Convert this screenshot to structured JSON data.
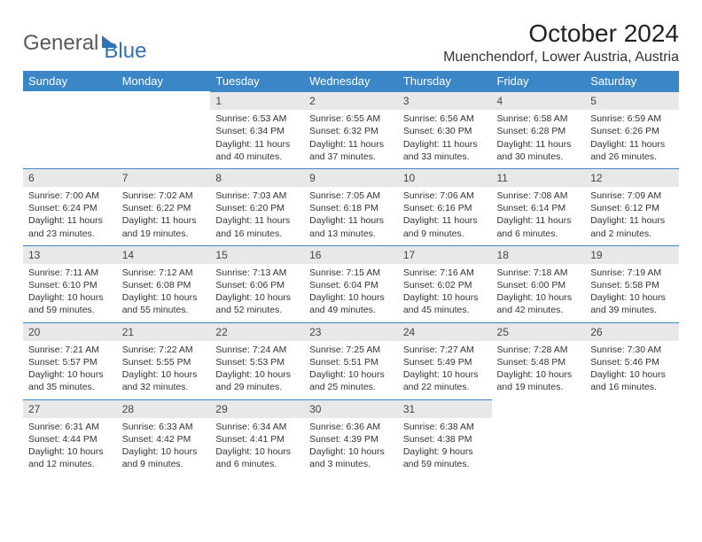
{
  "brand": {
    "part1": "General",
    "part2": "Blue"
  },
  "title": "October 2024",
  "location": "Muenchendorf, Lower Austria, Austria",
  "colors": {
    "header_bg": "#3b86c6",
    "header_fg": "#ffffff",
    "daynum_bg": "#e8e8e8",
    "daynum_border": "#3b86c6",
    "brand_gray": "#5a5a5a",
    "brand_blue": "#2f72b8"
  },
  "typography": {
    "title_fontsize": 28,
    "subtitle_fontsize": 16,
    "dayheader_fontsize": 13,
    "cell_fontsize": 10.5
  },
  "weekdays": [
    "Sunday",
    "Monday",
    "Tuesday",
    "Wednesday",
    "Thursday",
    "Friday",
    "Saturday"
  ],
  "weeks": [
    [
      null,
      null,
      {
        "n": "1",
        "sunrise": "6:53 AM",
        "sunset": "6:34 PM",
        "daylight": "11 hours and 40 minutes."
      },
      {
        "n": "2",
        "sunrise": "6:55 AM",
        "sunset": "6:32 PM",
        "daylight": "11 hours and 37 minutes."
      },
      {
        "n": "3",
        "sunrise": "6:56 AM",
        "sunset": "6:30 PM",
        "daylight": "11 hours and 33 minutes."
      },
      {
        "n": "4",
        "sunrise": "6:58 AM",
        "sunset": "6:28 PM",
        "daylight": "11 hours and 30 minutes."
      },
      {
        "n": "5",
        "sunrise": "6:59 AM",
        "sunset": "6:26 PM",
        "daylight": "11 hours and 26 minutes."
      }
    ],
    [
      {
        "n": "6",
        "sunrise": "7:00 AM",
        "sunset": "6:24 PM",
        "daylight": "11 hours and 23 minutes."
      },
      {
        "n": "7",
        "sunrise": "7:02 AM",
        "sunset": "6:22 PM",
        "daylight": "11 hours and 19 minutes."
      },
      {
        "n": "8",
        "sunrise": "7:03 AM",
        "sunset": "6:20 PM",
        "daylight": "11 hours and 16 minutes."
      },
      {
        "n": "9",
        "sunrise": "7:05 AM",
        "sunset": "6:18 PM",
        "daylight": "11 hours and 13 minutes."
      },
      {
        "n": "10",
        "sunrise": "7:06 AM",
        "sunset": "6:16 PM",
        "daylight": "11 hours and 9 minutes."
      },
      {
        "n": "11",
        "sunrise": "7:08 AM",
        "sunset": "6:14 PM",
        "daylight": "11 hours and 6 minutes."
      },
      {
        "n": "12",
        "sunrise": "7:09 AM",
        "sunset": "6:12 PM",
        "daylight": "11 hours and 2 minutes."
      }
    ],
    [
      {
        "n": "13",
        "sunrise": "7:11 AM",
        "sunset": "6:10 PM",
        "daylight": "10 hours and 59 minutes."
      },
      {
        "n": "14",
        "sunrise": "7:12 AM",
        "sunset": "6:08 PM",
        "daylight": "10 hours and 55 minutes."
      },
      {
        "n": "15",
        "sunrise": "7:13 AM",
        "sunset": "6:06 PM",
        "daylight": "10 hours and 52 minutes."
      },
      {
        "n": "16",
        "sunrise": "7:15 AM",
        "sunset": "6:04 PM",
        "daylight": "10 hours and 49 minutes."
      },
      {
        "n": "17",
        "sunrise": "7:16 AM",
        "sunset": "6:02 PM",
        "daylight": "10 hours and 45 minutes."
      },
      {
        "n": "18",
        "sunrise": "7:18 AM",
        "sunset": "6:00 PM",
        "daylight": "10 hours and 42 minutes."
      },
      {
        "n": "19",
        "sunrise": "7:19 AM",
        "sunset": "5:58 PM",
        "daylight": "10 hours and 39 minutes."
      }
    ],
    [
      {
        "n": "20",
        "sunrise": "7:21 AM",
        "sunset": "5:57 PM",
        "daylight": "10 hours and 35 minutes."
      },
      {
        "n": "21",
        "sunrise": "7:22 AM",
        "sunset": "5:55 PM",
        "daylight": "10 hours and 32 minutes."
      },
      {
        "n": "22",
        "sunrise": "7:24 AM",
        "sunset": "5:53 PM",
        "daylight": "10 hours and 29 minutes."
      },
      {
        "n": "23",
        "sunrise": "7:25 AM",
        "sunset": "5:51 PM",
        "daylight": "10 hours and 25 minutes."
      },
      {
        "n": "24",
        "sunrise": "7:27 AM",
        "sunset": "5:49 PM",
        "daylight": "10 hours and 22 minutes."
      },
      {
        "n": "25",
        "sunrise": "7:28 AM",
        "sunset": "5:48 PM",
        "daylight": "10 hours and 19 minutes."
      },
      {
        "n": "26",
        "sunrise": "7:30 AM",
        "sunset": "5:46 PM",
        "daylight": "10 hours and 16 minutes."
      }
    ],
    [
      {
        "n": "27",
        "sunrise": "6:31 AM",
        "sunset": "4:44 PM",
        "daylight": "10 hours and 12 minutes."
      },
      {
        "n": "28",
        "sunrise": "6:33 AM",
        "sunset": "4:42 PM",
        "daylight": "10 hours and 9 minutes."
      },
      {
        "n": "29",
        "sunrise": "6:34 AM",
        "sunset": "4:41 PM",
        "daylight": "10 hours and 6 minutes."
      },
      {
        "n": "30",
        "sunrise": "6:36 AM",
        "sunset": "4:39 PM",
        "daylight": "10 hours and 3 minutes."
      },
      {
        "n": "31",
        "sunrise": "6:38 AM",
        "sunset": "4:38 PM",
        "daylight": "9 hours and 59 minutes."
      },
      null,
      null
    ]
  ]
}
